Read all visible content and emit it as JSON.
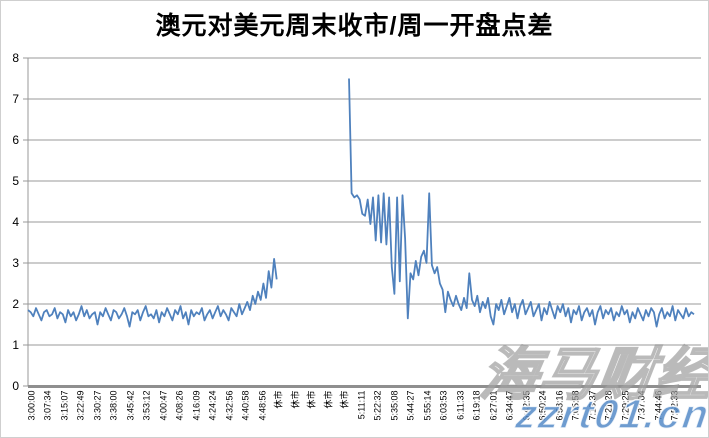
{
  "title": "澳元对美元周末收市/周一开盘点差",
  "watermark": {
    "brand": "海马财经",
    "url": "zzrt01.cn"
  },
  "colors": {
    "line": "#4f81bd",
    "grid": "#999999",
    "axis": "#999999",
    "axis_baseline": "#8f8f8f",
    "text": "#000000",
    "watermark_url": "#4e86c6",
    "watermark_outline": "#a0a0a0"
  },
  "chart_data": {
    "type": "line",
    "title": "澳元对美元周末收市/周一开盘点差",
    "xlabel": "",
    "ylabel": "",
    "ylim": [
      0,
      8
    ],
    "yticks": [
      0,
      1,
      2,
      3,
      4,
      5,
      6,
      7,
      8
    ],
    "grid": "horizontal",
    "legend_position": "none",
    "closed_market_label": "休市",
    "x_labels": [
      "3:00:00",
      "3:07:34",
      "3:15:07",
      "3:22:49",
      "3:30:27",
      "3:38:00",
      "3:45:42",
      "3:53:12",
      "4:00:47",
      "4:08:26",
      "4:16:09",
      "4:24:24",
      "4:32:56",
      "4:40:58",
      "4:48:56",
      "休市",
      "休市",
      "休市",
      "休市",
      "休市",
      "5:11:11",
      "5:22:32",
      "5:35:08",
      "5:44:27",
      "5:55:14",
      "6:03:53",
      "6:11:33",
      "6:19:18",
      "6:27:01",
      "6:34:47",
      "6:42:35",
      "6:50:24",
      "6:58:16",
      "7:05:58",
      "7:13:37",
      "7:21:28",
      "7:29:25",
      "7:37:04",
      "7:44:46",
      "7:52:33"
    ],
    "series": [
      {
        "name": "点差",
        "color": "#4f81bd",
        "values": [
          1.85,
          1.8,
          1.7,
          1.9,
          1.75,
          1.6,
          1.8,
          1.85,
          1.7,
          1.75,
          1.9,
          1.65,
          1.8,
          1.75,
          1.55,
          1.85,
          1.7,
          1.8,
          1.6,
          1.75,
          1.95,
          1.7,
          1.85,
          1.65,
          1.75,
          1.8,
          1.5,
          1.8,
          1.7,
          1.9,
          1.75,
          1.6,
          1.85,
          1.8,
          1.65,
          1.75,
          1.9,
          1.7,
          1.45,
          1.8,
          1.75,
          1.85,
          1.6,
          1.8,
          1.95,
          1.7,
          1.75,
          1.65,
          1.85,
          1.55,
          1.8,
          1.7,
          1.9,
          1.75,
          1.6,
          1.85,
          1.75,
          1.95,
          1.65,
          1.8,
          1.5,
          1.85,
          1.7,
          1.8,
          1.75,
          1.9,
          1.6,
          1.75,
          1.85,
          1.65,
          1.8,
          1.95,
          1.7,
          1.85,
          1.75,
          1.6,
          1.9,
          1.8,
          1.7,
          2.0,
          1.75,
          1.9,
          2.05,
          1.85,
          2.2,
          2.0,
          2.3,
          2.1,
          2.5,
          2.15,
          2.8,
          2.4,
          3.1,
          2.6,
          null,
          null,
          null,
          null,
          null,
          null,
          null,
          null,
          null,
          null,
          null,
          null,
          null,
          null,
          null,
          null,
          null,
          null,
          null,
          null,
          null,
          null,
          null,
          null,
          null,
          null,
          7.5,
          4.7,
          4.6,
          4.65,
          4.55,
          4.2,
          4.15,
          4.55,
          3.95,
          4.6,
          3.55,
          4.65,
          3.5,
          4.7,
          3.45,
          4.6,
          2.9,
          2.25,
          4.6,
          2.55,
          4.65,
          3.6,
          1.65,
          2.75,
          2.6,
          3.05,
          2.7,
          3.15,
          3.3,
          3.0,
          4.7,
          2.95,
          2.75,
          2.9,
          2.5,
          2.35,
          1.8,
          2.3,
          2.1,
          1.95,
          2.2,
          2.0,
          1.85,
          2.15,
          1.9,
          2.75,
          2.1,
          1.95,
          2.2,
          1.8,
          2.05,
          1.9,
          2.15,
          1.7,
          1.5,
          2.0,
          1.85,
          2.1,
          1.75,
          1.95,
          2.15,
          1.8,
          2.0,
          1.65,
          1.95,
          2.1,
          1.75,
          1.9,
          2.05,
          1.7,
          1.85,
          2.0,
          1.6,
          1.9,
          1.75,
          2.05,
          1.85,
          1.65,
          1.95,
          1.8,
          2.0,
          1.7,
          1.9,
          1.55,
          1.85,
          1.75,
          1.95,
          1.6,
          1.8,
          1.9,
          1.7,
          1.85,
          1.5,
          1.8,
          1.95,
          1.65,
          1.85,
          1.75,
          1.9,
          1.6,
          1.8,
          1.7,
          1.95,
          1.75,
          1.85,
          1.55,
          1.8,
          1.65,
          1.9,
          1.75,
          1.6,
          1.85,
          1.7,
          1.9,
          1.8,
          1.45,
          1.75,
          1.9,
          1.65,
          1.8,
          1.7,
          1.95,
          1.6,
          1.85,
          1.75,
          1.65,
          1.9,
          1.7,
          1.8,
          1.75
        ]
      }
    ]
  }
}
